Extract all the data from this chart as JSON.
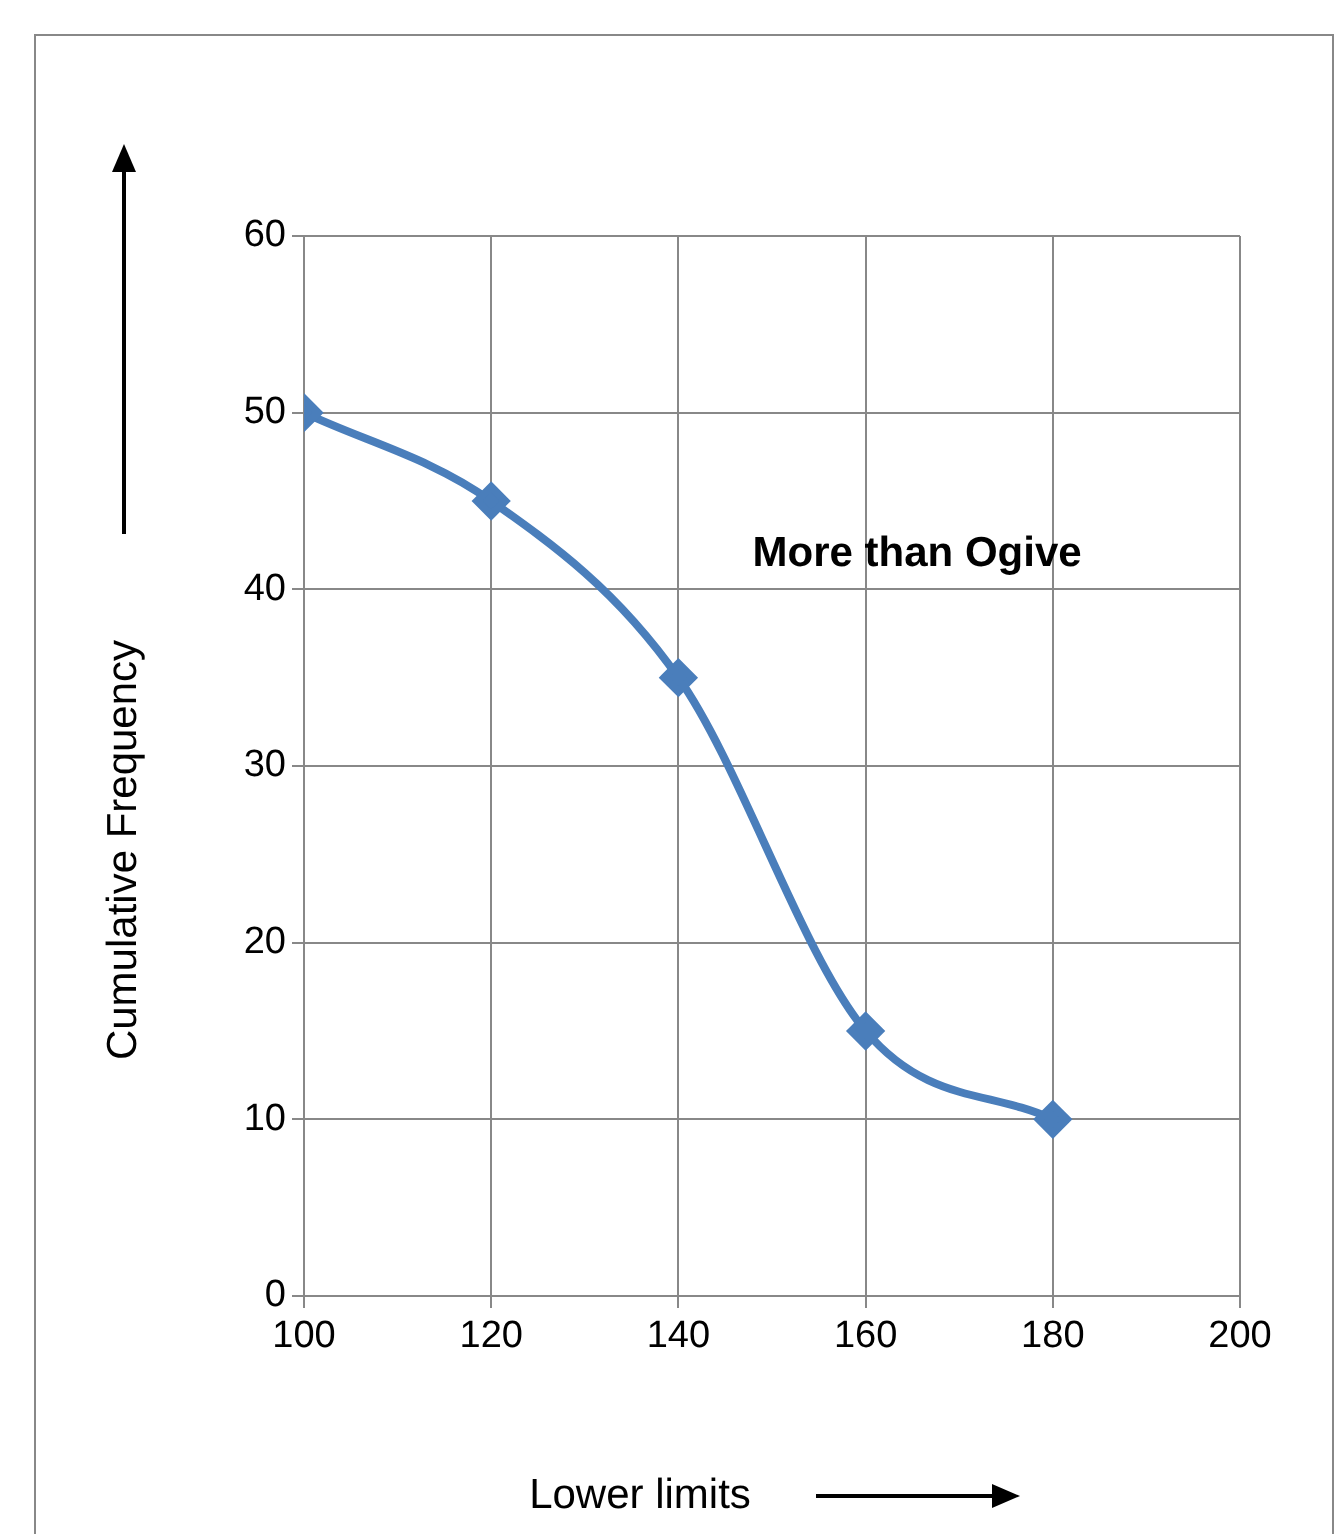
{
  "chart_data": {
    "type": "line",
    "xlabel": "Lower limits",
    "ylabel": "Cumulative Frequency",
    "annotations": [
      "More than Ogive"
    ],
    "x": [
      100,
      120,
      140,
      160,
      180
    ],
    "series": [
      {
        "color": "#4a7ebb",
        "values": [
          50,
          45,
          35,
          15,
          10
        ]
      }
    ],
    "xlim": [
      100,
      200
    ],
    "xticks": [
      100,
      120,
      140,
      160,
      180,
      200
    ],
    "ylim": [
      0,
      60
    ],
    "yticks": [
      0,
      10,
      20,
      30,
      40,
      50,
      60
    ],
    "grid": true,
    "legend": false,
    "marker": "diamond",
    "line_style": "solid"
  }
}
